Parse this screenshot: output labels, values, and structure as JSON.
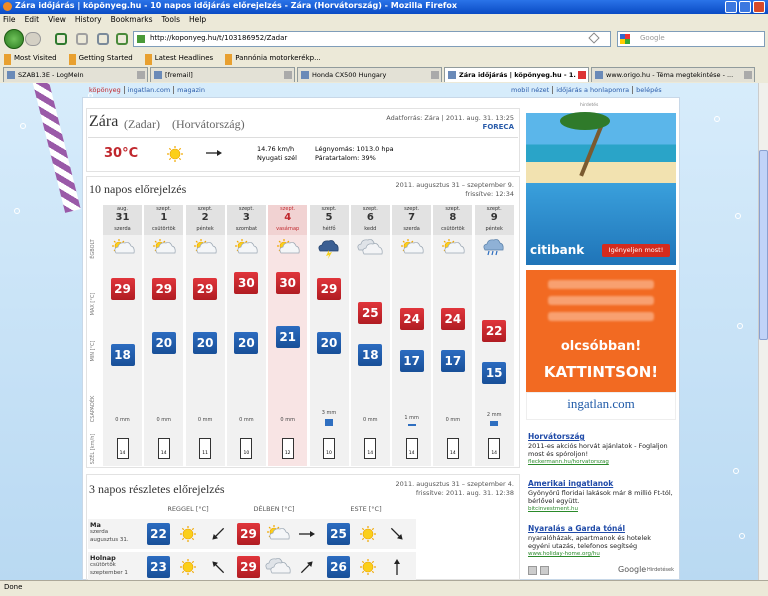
{
  "browser": {
    "title": "Zára időjárás | köpönyeg.hu - 10 napos időjárás előrejelzés - Zára (Horvátország) - Mozilla Firefox",
    "menu": [
      "File",
      "Edit",
      "View",
      "History",
      "Bookmarks",
      "Tools",
      "Help"
    ],
    "url": "http://koponyeg.hu/t/103186952/Zadar",
    "search": "Google",
    "bookmarks": [
      "Most Visited",
      "Getting Started",
      "Latest Headlines",
      "Pannónia motorkerékp..."
    ],
    "tabs": [
      "SZAB1.3E - LogMeIn",
      "[fremail]",
      "Honda CX500 Hungary",
      "Zára időjárás | köpönyeg.hu - 1...",
      "www.origo.hu - Téma megtekintése - ..."
    ],
    "status": "Done"
  },
  "site_nav": {
    "left": [
      "köpönyeg",
      "ingatlan.com",
      "magazin"
    ],
    "right": [
      "mobil nézet",
      "időjárás a honlapomra",
      "belépés"
    ]
  },
  "location": {
    "city": "Zára",
    "local": "(Zadar)",
    "country": "(Horvátország)",
    "source": "Adatforrás: Zára | 2011. aug. 31. 13:25",
    "provider": "FORECA"
  },
  "current": {
    "temp": "30°C",
    "wind_speed": "14.76 km/h",
    "wind_dir": "Nyugati szél",
    "pressure": "Légnyomás: 1013.0 hpa",
    "humidity": "Páratartalom: 39%"
  },
  "forecast10": {
    "title": "10 napos előrejelzés",
    "range": "2011. augusztus 31 – szeptember 9.",
    "updated": "frissítve: 12:34",
    "row_labels": [
      "ÉGBOLT",
      "MAX [°C]",
      "MIN [°C]",
      "CSAPADÉK",
      "SZÉL [km/h]"
    ],
    "days": [
      {
        "month": "aug.",
        "day": 31,
        "weekday": "szerda",
        "max": 29,
        "min": 18,
        "precip": {
          "value": 0,
          "label": "0 mm"
        },
        "wind": 14
      },
      {
        "month": "szept.",
        "day": 1,
        "weekday": "csütörtök",
        "max": 29,
        "min": 20,
        "precip": {
          "value": 0,
          "label": "0 mm"
        },
        "wind": 14
      },
      {
        "month": "szept.",
        "day": 2,
        "weekday": "péntek",
        "max": 29,
        "min": 20,
        "precip": {
          "value": 0,
          "label": "0 mm"
        },
        "wind": 11
      },
      {
        "month": "szept.",
        "day": 3,
        "weekday": "szombat",
        "max": 30,
        "min": 20,
        "precip": {
          "value": 0,
          "label": "0 mm"
        },
        "wind": 10
      },
      {
        "month": "szept.",
        "day": 4,
        "weekday": "vasárnap",
        "max": 30,
        "min": 21,
        "precip": {
          "value": 0,
          "label": "0 mm"
        },
        "wind": 12
      },
      {
        "month": "szept.",
        "day": 5,
        "weekday": "hétfő",
        "max": 29,
        "min": 20,
        "precip": {
          "value": 3,
          "label": "3 mm"
        },
        "wind": 10
      },
      {
        "month": "szept.",
        "day": 6,
        "weekday": "kedd",
        "max": 25,
        "min": 18,
        "precip": {
          "value": 0,
          "label": "0 mm"
        },
        "wind": 14
      },
      {
        "month": "szept.",
        "day": 7,
        "weekday": "szerda",
        "max": 24,
        "min": 17,
        "precip": {
          "value": 1,
          "label": "1 mm"
        },
        "wind": 14
      },
      {
        "month": "szept.",
        "day": 8,
        "weekday": "csütörtök",
        "max": 24,
        "min": 17,
        "precip": {
          "value": 0,
          "label": "0 mm"
        },
        "wind": 14
      },
      {
        "month": "szept.",
        "day": 9,
        "weekday": "péntek",
        "max": 22,
        "min": 15,
        "precip": {
          "value": 2,
          "label": "2 mm"
        },
        "wind": 14
      }
    ]
  },
  "forecast3": {
    "title": "3 napos részletes előrejelzés",
    "range": "2011. augusztus 31 – szeptember 4.",
    "updated": "frissítve: 2011. aug. 31. 12:38",
    "headers": [
      "REGGEL [°C]",
      "DÉLBEN [°C]",
      "ESTE [°C]"
    ],
    "rows": [
      {
        "day": "Ma",
        "weekday": "szerda",
        "date": "augusztus 31.",
        "temps": [
          22,
          29,
          25
        ]
      },
      {
        "day": "Holnap",
        "weekday": "csütörtök",
        "date": "szeptember 1",
        "temps": [
          23,
          29,
          26
        ]
      }
    ]
  },
  "ads": {
    "label": "hirdetés",
    "citi_brand": "citibank",
    "citi_button": "Igényeljen most!",
    "ingatlan_line1": "olcsóbban!",
    "ingatlan_line2": "KATTINTSON!",
    "ingatlan_brand": "ingatlan.com",
    "text_ads": [
      {
        "title": "Horvátország",
        "body": "2011-es akciós horvát ajánlatok - Foglaljon most és spóroljon!",
        "url": "fleckermann.hu/horvatorszag"
      },
      {
        "title": "Amerikai ingatlanok",
        "body": "Gyönyörű floridai lakások már 8 millió Ft-tól, bérlővel együtt.",
        "url": "bitcinvestment.hu"
      },
      {
        "title": "Nyaralás a Garda tónál",
        "body": "nyaralóházak, apartmanok és hotelek egyéni utazás, telefonos segítség",
        "url": "www.holiday-home.org/hu"
      }
    ],
    "google": "Google",
    "google_label": "Hirdetések"
  }
}
